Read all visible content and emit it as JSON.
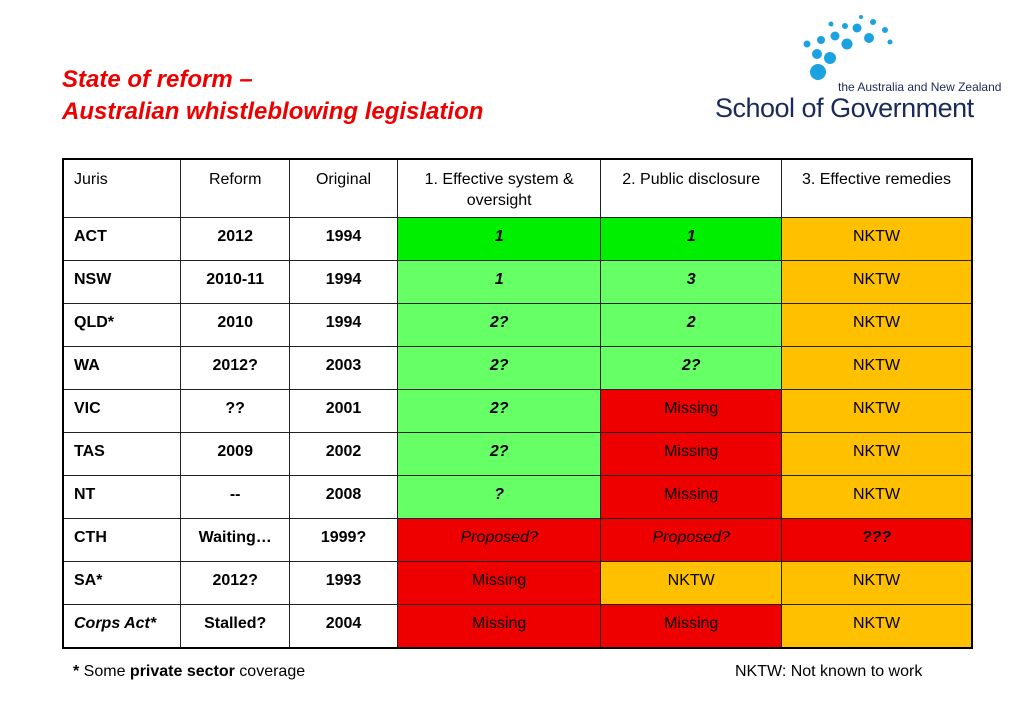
{
  "title": {
    "line1": "State of reform –",
    "line2": "Australian whistleblowing legislation"
  },
  "logo": {
    "sub": "the Australia and New Zealand",
    "main": "School of Government"
  },
  "table": {
    "headers": [
      "Juris",
      "Reform",
      "Original",
      "1. Effective system & oversight",
      "2. Public disclosure",
      "3. Effective remedies"
    ],
    "rows": [
      {
        "juris": "ACT",
        "reform": "2012",
        "original": "1994",
        "system": "1",
        "disclosure": "1",
        "remedies": "NKTW"
      },
      {
        "juris": "NSW",
        "reform": "2010-11",
        "original": "1994",
        "system": "1",
        "disclosure": "3",
        "remedies": "NKTW"
      },
      {
        "juris": "QLD*",
        "reform": "2010",
        "original": "1994",
        "system": "2?",
        "disclosure": "2",
        "remedies": "NKTW"
      },
      {
        "juris": "WA",
        "reform": "2012?",
        "original": "2003",
        "system": "2?",
        "disclosure": "2?",
        "remedies": "NKTW"
      },
      {
        "juris": "VIC",
        "reform": "??",
        "original": "2001",
        "system": "2?",
        "disclosure": "Missing",
        "remedies": "NKTW"
      },
      {
        "juris": "TAS",
        "reform": "2009",
        "original": "2002",
        "system": "2?",
        "disclosure": "Missing",
        "remedies": "NKTW"
      },
      {
        "juris": "NT",
        "reform": "--",
        "original": "2008",
        "system": "?",
        "disclosure": "Missing",
        "remedies": "NKTW"
      },
      {
        "juris": "CTH",
        "reform": "Waiting…",
        "original": "1999?",
        "system": "Proposed?",
        "disclosure": "Proposed?",
        "remedies": "???"
      },
      {
        "juris": "SA*",
        "reform": "2012?",
        "original": "1993",
        "system": "Missing",
        "disclosure": "NKTW",
        "remedies": "NKTW"
      },
      {
        "juris": "Corps Act*",
        "reform": "Stalled?",
        "original": "2004",
        "system": "Missing",
        "disclosure": "Missing",
        "remedies": "NKTW"
      }
    ]
  },
  "colors": {
    "green": "#00ee00",
    "light_green": "#66ff66",
    "red": "#ee0000",
    "orange": "#ffc000",
    "title_red": "#ee0000"
  },
  "footnote": {
    "star": "*",
    "some": " Some ",
    "bold": "private sector",
    "rest": " coverage"
  },
  "legend_note": "NKTW: Not known to work"
}
